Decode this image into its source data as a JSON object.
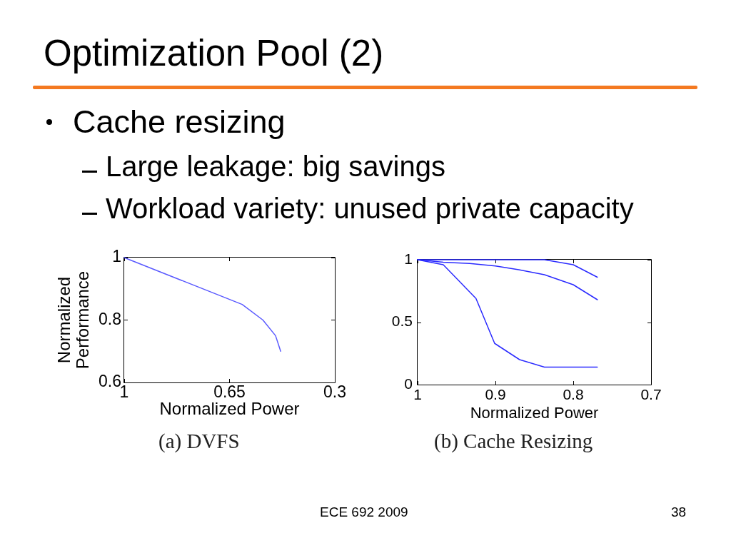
{
  "chart_data": [
    {
      "type": "other",
      "title": "Optimization Pool (2)",
      "annotations": [
        "Cache resizing",
        "Large leakage: big savings",
        "Workload variety: unused private capacity",
        "ECE 692 2009",
        "38"
      ]
    },
    {
      "type": "line",
      "title": "(a) DVFS",
      "xlabel": "Normalized Power",
      "ylabel": "Normalized Performance",
      "x": [
        1,
        0.608,
        0.539,
        0.497,
        0.48
      ],
      "values": [
        1,
        0.85,
        0.8,
        0.75,
        0.7
      ],
      "color": "#5a5aff",
      "xlim": [
        1,
        0.3
      ],
      "xticks": [
        1,
        0.65,
        0.3
      ],
      "ylim": [
        0.6,
        1
      ],
      "yticks": [
        0.6,
        0.8,
        1
      ]
    },
    {
      "type": "line",
      "title": "(b) Cache Resizing",
      "xlabel": "Normalized Power",
      "series": [
        {
          "color": "#2b2bff",
          "x": [
            1,
            0.9,
            0.837,
            0.8,
            0.769
          ],
          "values": [
            1,
            1,
            1,
            0.96,
            0.86
          ]
        },
        {
          "color": "#2b2bff",
          "x": [
            1,
            0.967,
            0.933,
            0.9,
            0.87,
            0.837,
            0.8,
            0.769
          ],
          "values": [
            1,
            0.98,
            0.97,
            0.95,
            0.92,
            0.88,
            0.8,
            0.68
          ]
        },
        {
          "color": "#2b2bff",
          "x": [
            1,
            0.967,
            0.925,
            0.901,
            0.869,
            0.837,
            0.769
          ],
          "values": [
            1,
            0.96,
            0.69,
            0.33,
            0.2,
            0.14,
            0.14
          ]
        }
      ],
      "xlim": [
        1,
        0.7
      ],
      "xticks": [
        1,
        0.9,
        0.8,
        0.7
      ],
      "ylim": [
        0,
        1
      ],
      "yticks": [
        0,
        0.5,
        1
      ]
    }
  ]
}
